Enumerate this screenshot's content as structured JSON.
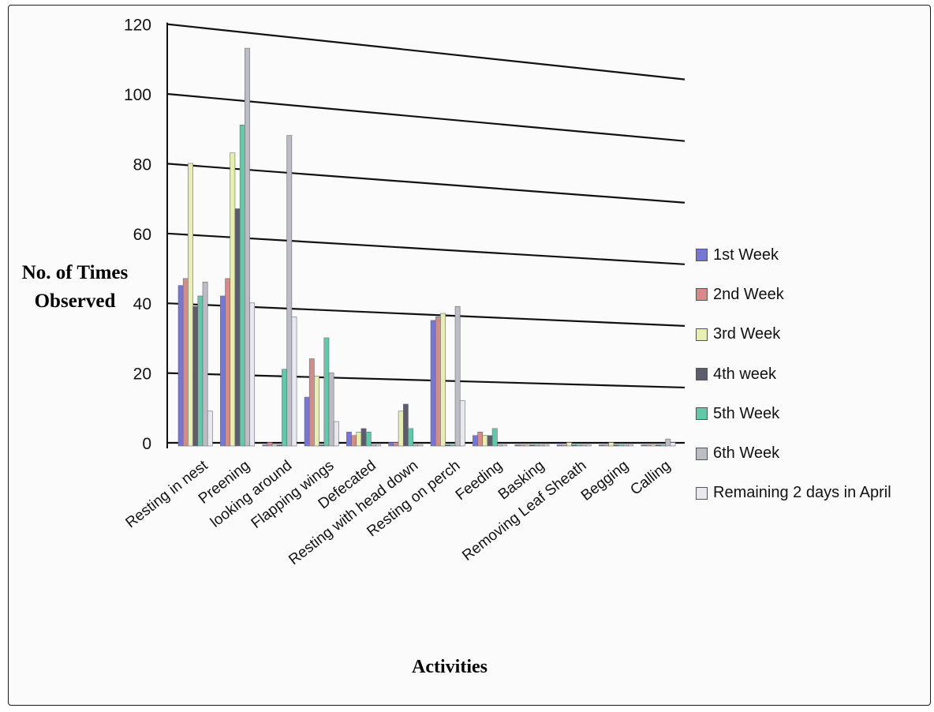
{
  "chart_data": {
    "type": "bar",
    "title": "",
    "xlabel": "Activities",
    "ylabel": "No. of Times Observed",
    "ylim": [
      0,
      120
    ],
    "yticks": [
      0,
      20,
      40,
      60,
      80,
      100,
      120
    ],
    "grid": true,
    "legend_position": "right",
    "categories": [
      "Resting in nest",
      "Preening",
      "looking around",
      "Flapping wings",
      "Defecated",
      "Resting with head down",
      "Resting on perch",
      "Feeding",
      "Basking",
      "Removing Leaf Sheath",
      "Begging",
      "Calling"
    ],
    "series": [
      {
        "name": "1st Week",
        "color": "#7676d8",
        "values": [
          46,
          43,
          0,
          14,
          4,
          1,
          36,
          3,
          0,
          0,
          0,
          0
        ]
      },
      {
        "name": "2nd Week",
        "color": "#d88a8a",
        "values": [
          48,
          48,
          1,
          25,
          3,
          1,
          37,
          4,
          0,
          0,
          0,
          0
        ]
      },
      {
        "name": "3rd Week",
        "color": "#e6eeb0",
        "values": [
          81,
          84,
          0,
          20,
          4,
          10,
          38,
          3,
          0,
          1,
          1,
          0
        ]
      },
      {
        "name": "4th week",
        "color": "#5c5c6c",
        "values": [
          40,
          68,
          0,
          0,
          5,
          12,
          0,
          3,
          0,
          0,
          0,
          0
        ]
      },
      {
        "name": "5th Week",
        "color": "#5fcaa8",
        "values": [
          43,
          92,
          22,
          31,
          4,
          5,
          0,
          5,
          0,
          0,
          0,
          0
        ]
      },
      {
        "name": "6th Week",
        "color": "#bcbcc4",
        "values": [
          47,
          114,
          89,
          21,
          0,
          0,
          40,
          0,
          0,
          0,
          0,
          2
        ]
      },
      {
        "name": "Remaining 2 days in April",
        "color": "#e8e8ee",
        "values": [
          10,
          41,
          37,
          7,
          0,
          0,
          13,
          0,
          0,
          0,
          0,
          1
        ]
      }
    ]
  }
}
